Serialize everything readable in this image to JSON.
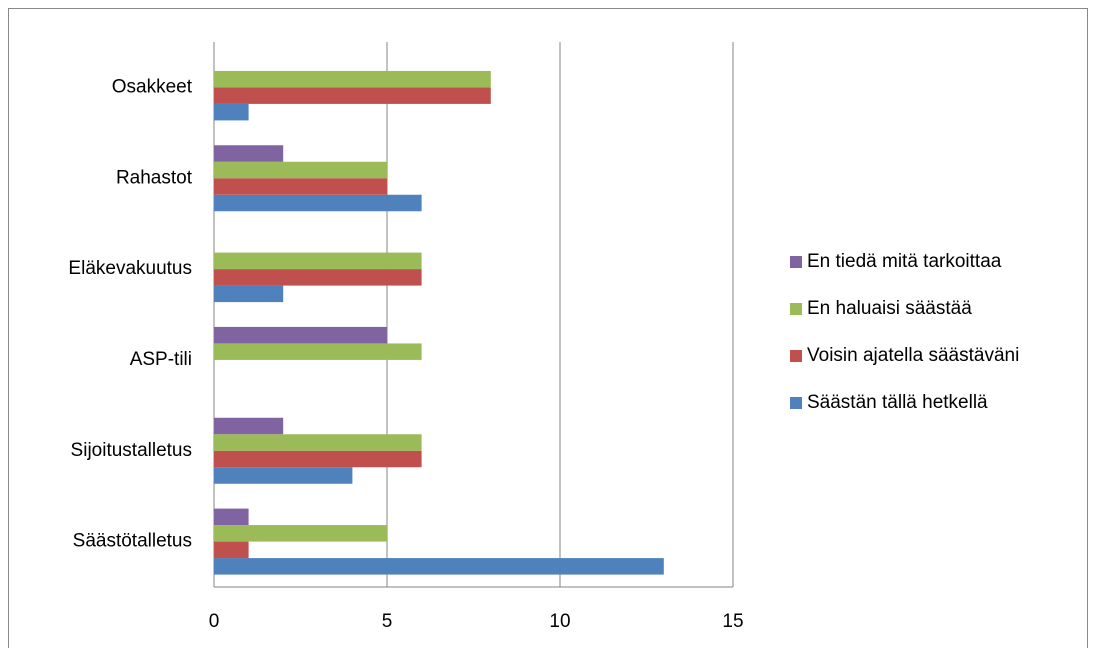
{
  "chart_data": {
    "type": "bar",
    "orientation": "horizontal",
    "categories": [
      "Säästötalletus",
      "Sijoitustalletus",
      "ASP-tili",
      "Eläkevakuutus",
      "Rahastot",
      "Osakkeet"
    ],
    "series": [
      {
        "name": "Säästän tällä hetkellä",
        "color": "#4f81bd",
        "values": [
          13,
          4,
          0,
          2,
          6,
          1
        ]
      },
      {
        "name": "Voisin ajatella säästäväni",
        "color": "#c0504d",
        "values": [
          1,
          6,
          0,
          6,
          5,
          8
        ]
      },
      {
        "name": "En haluaisi säästää",
        "color": "#9bbb59",
        "values": [
          5,
          6,
          6,
          6,
          5,
          8
        ]
      },
      {
        "name": "En tiedä mitä tarkoittaa",
        "color": "#8064a2",
        "values": [
          1,
          2,
          5,
          0,
          2,
          0
        ]
      }
    ],
    "xlim": [
      0,
      15
    ],
    "xticks": [
      0,
      5,
      10,
      15
    ],
    "grid": true,
    "legend": "right"
  }
}
